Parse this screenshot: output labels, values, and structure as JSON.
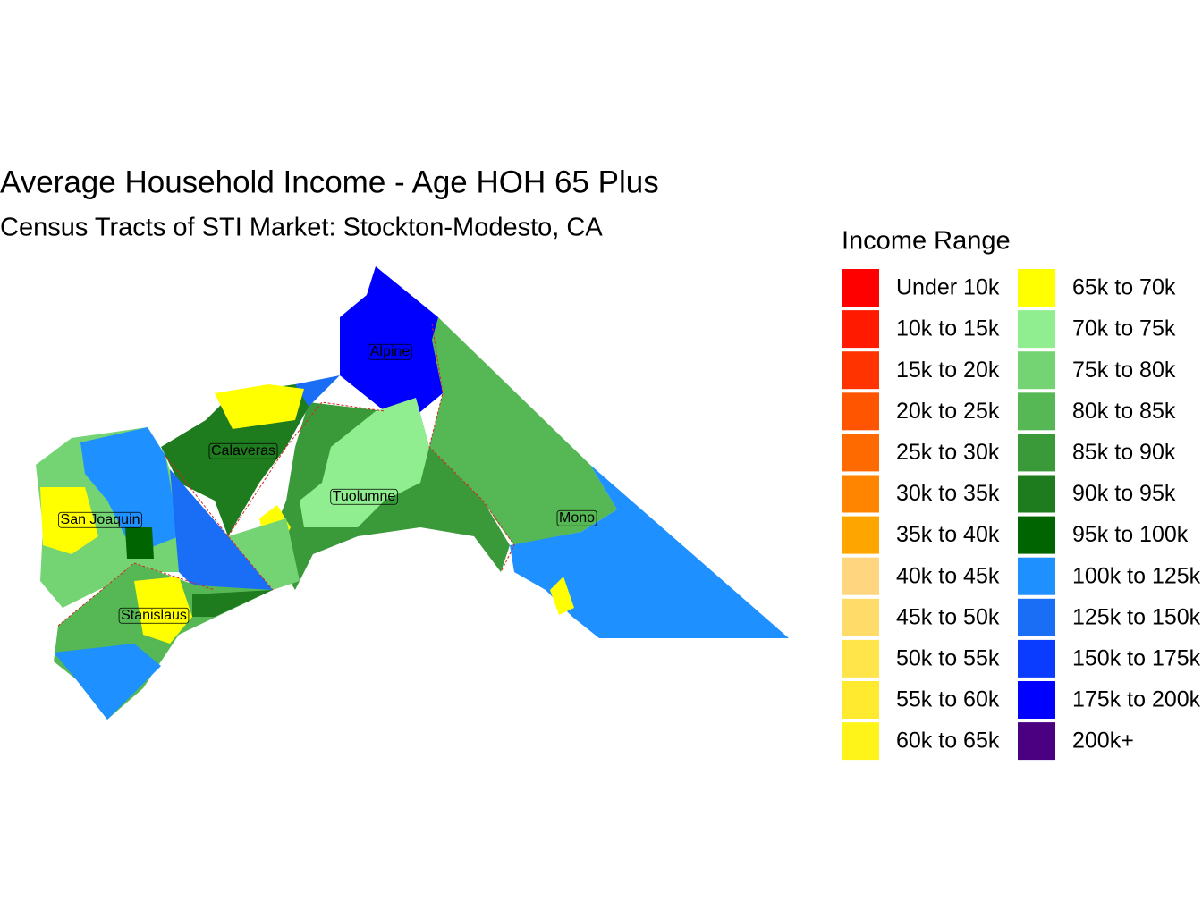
{
  "title": "Average Household Income - Age HOH 65 Plus",
  "subtitle": "Census Tracts of STI Market: Stockton-Modesto, CA",
  "legend": {
    "title": "Income Range",
    "items": [
      {
        "label": "Under 10k",
        "color": "#ff0000"
      },
      {
        "label": "10k to 15k",
        "color": "#ff1a00"
      },
      {
        "label": "15k to 20k",
        "color": "#ff3300"
      },
      {
        "label": "20k to 25k",
        "color": "#ff5500"
      },
      {
        "label": "25k to 30k",
        "color": "#ff6a00"
      },
      {
        "label": "30k to 35k",
        "color": "#ff8400"
      },
      {
        "label": "35k to 40k",
        "color": "#ffa500"
      },
      {
        "label": "40k to 45k",
        "color": "#ffd580"
      },
      {
        "label": "45k to 50k",
        "color": "#ffdb6a"
      },
      {
        "label": "50k to 55k",
        "color": "#ffe44a"
      },
      {
        "label": "55k to 60k",
        "color": "#ffea30"
      },
      {
        "label": "60k to 65k",
        "color": "#fff41a"
      },
      {
        "label": "65k to 70k",
        "color": "#ffff00"
      },
      {
        "label": "70k to 75k",
        "color": "#90ee90"
      },
      {
        "label": "75k to 80k",
        "color": "#74d474"
      },
      {
        "label": "80k to 85k",
        "color": "#55b855"
      },
      {
        "label": "85k to 90k",
        "color": "#3a9a3a"
      },
      {
        "label": "90k to 95k",
        "color": "#1e7b1e"
      },
      {
        "label": "95k to 100k",
        "color": "#006400"
      },
      {
        "label": "100k to 125k",
        "color": "#1e90ff"
      },
      {
        "label": "125k to 150k",
        "color": "#1a6ef5"
      },
      {
        "label": "150k to 175k",
        "color": "#0a3cff"
      },
      {
        "label": "175k to 200k",
        "color": "#0000ff"
      },
      {
        "label": "200k+",
        "color": "#4b0082"
      }
    ]
  },
  "regions": [
    {
      "label": "Alpine"
    },
    {
      "label": "Calaveras"
    },
    {
      "label": "Tuolumne"
    },
    {
      "label": "San Joaquin"
    },
    {
      "label": "Mono"
    },
    {
      "label": "Stanislaus"
    }
  ]
}
